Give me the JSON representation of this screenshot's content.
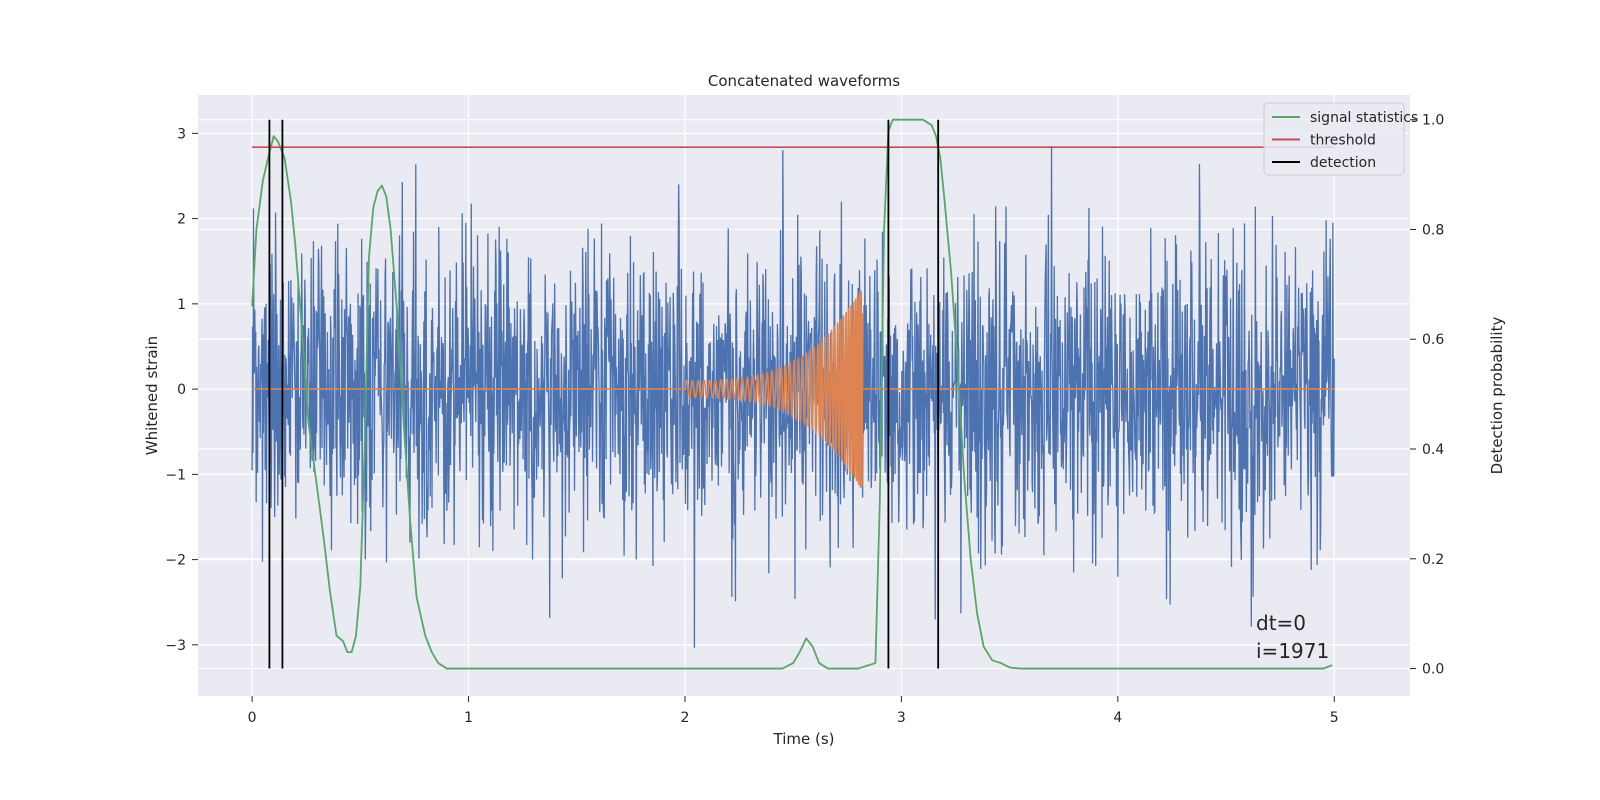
{
  "chart_data": {
    "type": "line",
    "title": "Concatenated waveforms",
    "xlabel": "Time (s)",
    "ylabel_left": "Whitened strain",
    "ylabel_right": "Detection probability",
    "xlim": [
      -0.25,
      5.35
    ],
    "ylim_left": [
      -3.6,
      3.45
    ],
    "ylim_right": [
      -0.05,
      1.045
    ],
    "xticks": [
      0,
      1,
      2,
      3,
      4,
      5
    ],
    "yticks_left": [
      -3,
      -2,
      -1,
      0,
      1,
      2,
      3
    ],
    "yticks_right": [
      0.0,
      0.2,
      0.4,
      0.6,
      0.8,
      1.0
    ],
    "grid": true,
    "legend_position": "top-right",
    "colors": {
      "strain": "#4c72b0",
      "template": "#dd8452",
      "signal_statistics": "#55a868",
      "threshold": "#c44e52",
      "detection": "#000000",
      "axes_bg": "#eaeaf2",
      "grid": "#ffffff"
    },
    "series": [
      {
        "name": "signal statistics",
        "axis": "right",
        "color": "#55a868",
        "x": [
          0.0,
          0.02,
          0.05,
          0.08,
          0.1,
          0.12,
          0.15,
          0.18,
          0.2,
          0.23,
          0.26,
          0.3,
          0.33,
          0.36,
          0.39,
          0.42,
          0.44,
          0.46,
          0.48,
          0.5,
          0.52,
          0.54,
          0.56,
          0.58,
          0.6,
          0.62,
          0.64,
          0.67,
          0.7,
          0.73,
          0.76,
          0.8,
          0.83,
          0.86,
          0.9,
          1.0,
          1.5,
          2.0,
          2.3,
          2.45,
          2.5,
          2.53,
          2.56,
          2.59,
          2.62,
          2.66,
          2.7,
          2.8,
          2.88,
          2.9,
          2.92,
          2.94,
          2.96,
          2.98,
          3.0,
          3.05,
          3.1,
          3.14,
          3.16,
          3.18,
          3.2,
          3.23,
          3.26,
          3.29,
          3.32,
          3.35,
          3.38,
          3.42,
          3.46,
          3.5,
          3.55,
          3.6,
          4.0,
          4.5,
          4.9,
          4.95,
          4.99
        ],
        "y": [
          0.66,
          0.8,
          0.89,
          0.94,
          0.97,
          0.96,
          0.93,
          0.85,
          0.77,
          0.62,
          0.45,
          0.33,
          0.24,
          0.14,
          0.06,
          0.05,
          0.03,
          0.03,
          0.06,
          0.15,
          0.4,
          0.75,
          0.84,
          0.87,
          0.88,
          0.86,
          0.8,
          0.65,
          0.45,
          0.27,
          0.13,
          0.06,
          0.03,
          0.01,
          0.0,
          0.0,
          0.0,
          0.0,
          0.0,
          0.0,
          0.01,
          0.03,
          0.055,
          0.04,
          0.01,
          0.0,
          0.0,
          0.0,
          0.01,
          0.3,
          0.8,
          0.98,
          1.0,
          1.0,
          1.0,
          1.0,
          1.0,
          0.99,
          0.97,
          0.93,
          0.85,
          0.72,
          0.55,
          0.35,
          0.2,
          0.1,
          0.04,
          0.015,
          0.01,
          0.002,
          0.0,
          0.0,
          0.0,
          0.0,
          0.0,
          0.0,
          0.006
        ]
      },
      {
        "name": "threshold",
        "axis": "right",
        "color": "#c44e52",
        "x": [
          0.0,
          5.0
        ],
        "y": [
          0.95,
          0.95
        ]
      },
      {
        "name": "detection",
        "axis": "right",
        "color": "#000000",
        "vlines": [
          0.08,
          0.14,
          2.94,
          3.17
        ],
        "ymin": 0.0,
        "ymax": 1.0
      }
    ],
    "strain_background": {
      "axis": "left",
      "color": "#4c72b0",
      "x_range": [
        0.0,
        5.0
      ],
      "typical_amplitude": 1.3,
      "max_abs": 3.3
    },
    "template_waveform": {
      "axis": "left",
      "color": "#dd8452",
      "x_range": [
        0.0,
        5.0
      ],
      "chirp_start": 2.0,
      "chirp_end": 2.82,
      "start_amplitude": 0.1,
      "peak_amplitude": 1.2
    },
    "legend": [
      "signal statistics",
      "threshold",
      "detection"
    ],
    "annotations": [
      "dt=0",
      "i=1971"
    ]
  }
}
